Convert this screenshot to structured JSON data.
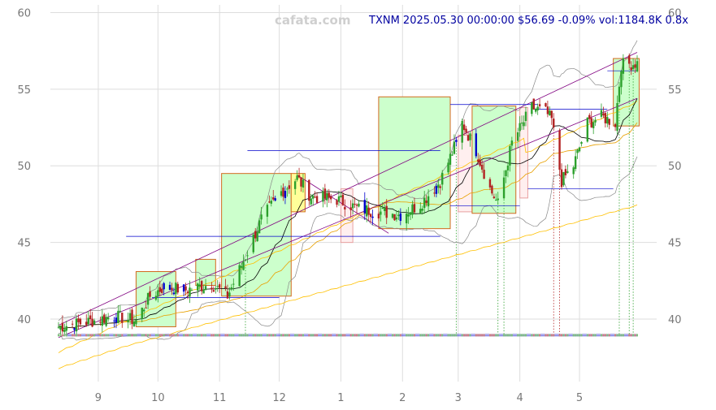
{
  "watermark": "cafata.com",
  "info": "TXNM 2025.05.30 00:00:00 $56.69 -0.09% vol:1184.8K 0.8x",
  "colors": {
    "up": "#2ca02c",
    "down": "#b22222",
    "box_up": "#ccffcc",
    "box_down": "#ffe8e8",
    "box_yellow": "#ffff99",
    "ma_short": "#000000",
    "ma_mid": "#ffc000",
    "band": "#888888",
    "channel": "#800080",
    "level": "#0000cc"
  },
  "chart_data": {
    "type": "candlestick",
    "title": "",
    "xlabel": "",
    "ylabel": "",
    "ylim": [
      35.5,
      60.5
    ],
    "grid": true,
    "yticks": [
      40,
      45,
      50,
      55,
      60
    ],
    "xtick_labels": [
      "9",
      "10",
      "11",
      "12",
      "1",
      "2",
      "3",
      "4",
      "5"
    ],
    "xtick_dates": [
      "2024-09-01",
      "2024-10-01",
      "2024-11-01",
      "2024-12-01",
      "2025-01-01",
      "2025-02-01",
      "2025-03-01",
      "2025-04-01",
      "2025-05-01"
    ],
    "start_date": "2024-08-12",
    "end_date": "2025-05-30",
    "close_path": [
      [
        "2024-08-12",
        39.5
      ],
      [
        "2024-08-26",
        39.8
      ],
      [
        "2024-09-09",
        40.2
      ],
      [
        "2024-09-20",
        39.9
      ],
      [
        "2024-09-27",
        41.5
      ],
      [
        "2024-10-04",
        42.1
      ],
      [
        "2024-10-15",
        41.9
      ],
      [
        "2024-10-28",
        42.3
      ],
      [
        "2024-11-05",
        41.5
      ],
      [
        "2024-11-12",
        43.5
      ],
      [
        "2024-11-22",
        46.5
      ],
      [
        "2024-12-02",
        48.3
      ],
      [
        "2024-12-10",
        49.2
      ],
      [
        "2024-12-17",
        48.0
      ],
      [
        "2024-12-30",
        47.8
      ],
      [
        "2025-01-10",
        47.2
      ],
      [
        "2025-01-20",
        47.0
      ],
      [
        "2025-01-31",
        46.8
      ],
      [
        "2025-02-10",
        47.5
      ],
      [
        "2025-02-20",
        49.0
      ],
      [
        "2025-02-28",
        51.5
      ],
      [
        "2025-03-03",
        52.8
      ],
      [
        "2025-03-10",
        51.0
      ],
      [
        "2025-03-17",
        48.5
      ],
      [
        "2025-03-21",
        47.5
      ],
      [
        "2025-03-28",
        51.5
      ],
      [
        "2025-04-07",
        53.8
      ],
      [
        "2025-04-14",
        53.5
      ],
      [
        "2025-04-17",
        53.0
      ],
      [
        "2025-04-22",
        49.0
      ],
      [
        "2025-04-28",
        50.0
      ],
      [
        "2025-05-05",
        52.8
      ],
      [
        "2025-05-12",
        53.2
      ],
      [
        "2025-05-19",
        52.8
      ],
      [
        "2025-05-22",
        56.6
      ],
      [
        "2025-05-30",
        56.69
      ]
    ],
    "boxes": [
      {
        "start": "2024-09-20",
        "end": "2024-10-10",
        "low": 39.5,
        "high": 43.1,
        "kind": "up"
      },
      {
        "start": "2024-10-20",
        "end": "2024-10-30",
        "low": 42.2,
        "high": 43.9,
        "kind": "up"
      },
      {
        "start": "2024-11-02",
        "end": "2024-12-07",
        "low": 41.5,
        "high": 49.5,
        "kind": "up"
      },
      {
        "start": "2024-12-07",
        "end": "2024-12-14",
        "low": 47.0,
        "high": 49.5,
        "kind": "yellow"
      },
      {
        "start": "2025-01-01",
        "end": "2025-01-07",
        "low": 45.0,
        "high": 48.5,
        "kind": "down"
      },
      {
        "start": "2025-01-20",
        "end": "2025-02-25",
        "low": 45.9,
        "high": 54.5,
        "kind": "up"
      },
      {
        "start": "2025-03-01",
        "end": "2025-03-08",
        "low": 47.0,
        "high": 52.0,
        "kind": "down"
      },
      {
        "start": "2025-03-08",
        "end": "2025-03-30",
        "low": 46.9,
        "high": 53.9,
        "kind": "up"
      },
      {
        "start": "2025-04-01",
        "end": "2025-04-05",
        "low": 47.9,
        "high": 53.8,
        "kind": "down"
      },
      {
        "start": "2025-05-18",
        "end": "2025-05-31",
        "low": 52.6,
        "high": 57.0,
        "kind": "up"
      }
    ],
    "levels": [
      {
        "start": "2024-09-15",
        "end": "2025-02-20",
        "y": 45.4
      },
      {
        "start": "2024-11-15",
        "end": "2025-02-20",
        "y": 51.0
      },
      {
        "start": "2024-09-28",
        "end": "2024-12-01",
        "y": 41.4
      },
      {
        "start": "2025-02-25",
        "end": "2025-04-10",
        "y": 54.0
      },
      {
        "start": "2025-02-25",
        "end": "2025-04-01",
        "y": 47.4
      },
      {
        "start": "2025-04-08",
        "end": "2025-05-15",
        "y": 53.7
      },
      {
        "start": "2025-04-05",
        "end": "2025-05-18",
        "y": 48.5
      },
      {
        "start": "2025-05-15",
        "end": "2025-05-30",
        "y": 56.2
      },
      {
        "start": "2024-08-16",
        "end": "2025-05-30",
        "y": 39.0
      },
      {
        "start": "2024-08-16",
        "end": "2025-05-30",
        "y": 38.9
      }
    ],
    "channel_lines": [
      [
        [
          "2024-08-12",
          39.6
        ],
        [
          "2025-05-30",
          57.4
        ]
      ],
      [
        [
          "2024-08-12",
          38.8
        ],
        [
          "2025-05-30",
          54.4
        ]
      ],
      [
        [
          "2024-12-10",
          49.4
        ],
        [
          "2025-01-25",
          45.6
        ]
      ]
    ],
    "vmarks": [
      {
        "date": "2024-11-14",
        "kind": "up"
      },
      {
        "date": "2025-02-28",
        "kind": "up"
      },
      {
        "date": "2025-03-21",
        "kind": "up"
      },
      {
        "date": "2025-03-24",
        "kind": "up"
      },
      {
        "date": "2025-04-18",
        "kind": "down"
      },
      {
        "date": "2025-04-21",
        "kind": "down"
      },
      {
        "date": "2025-05-21",
        "kind": "up"
      },
      {
        "date": "2025-05-26",
        "kind": "up"
      },
      {
        "date": "2025-05-28",
        "kind": "up"
      }
    ]
  }
}
